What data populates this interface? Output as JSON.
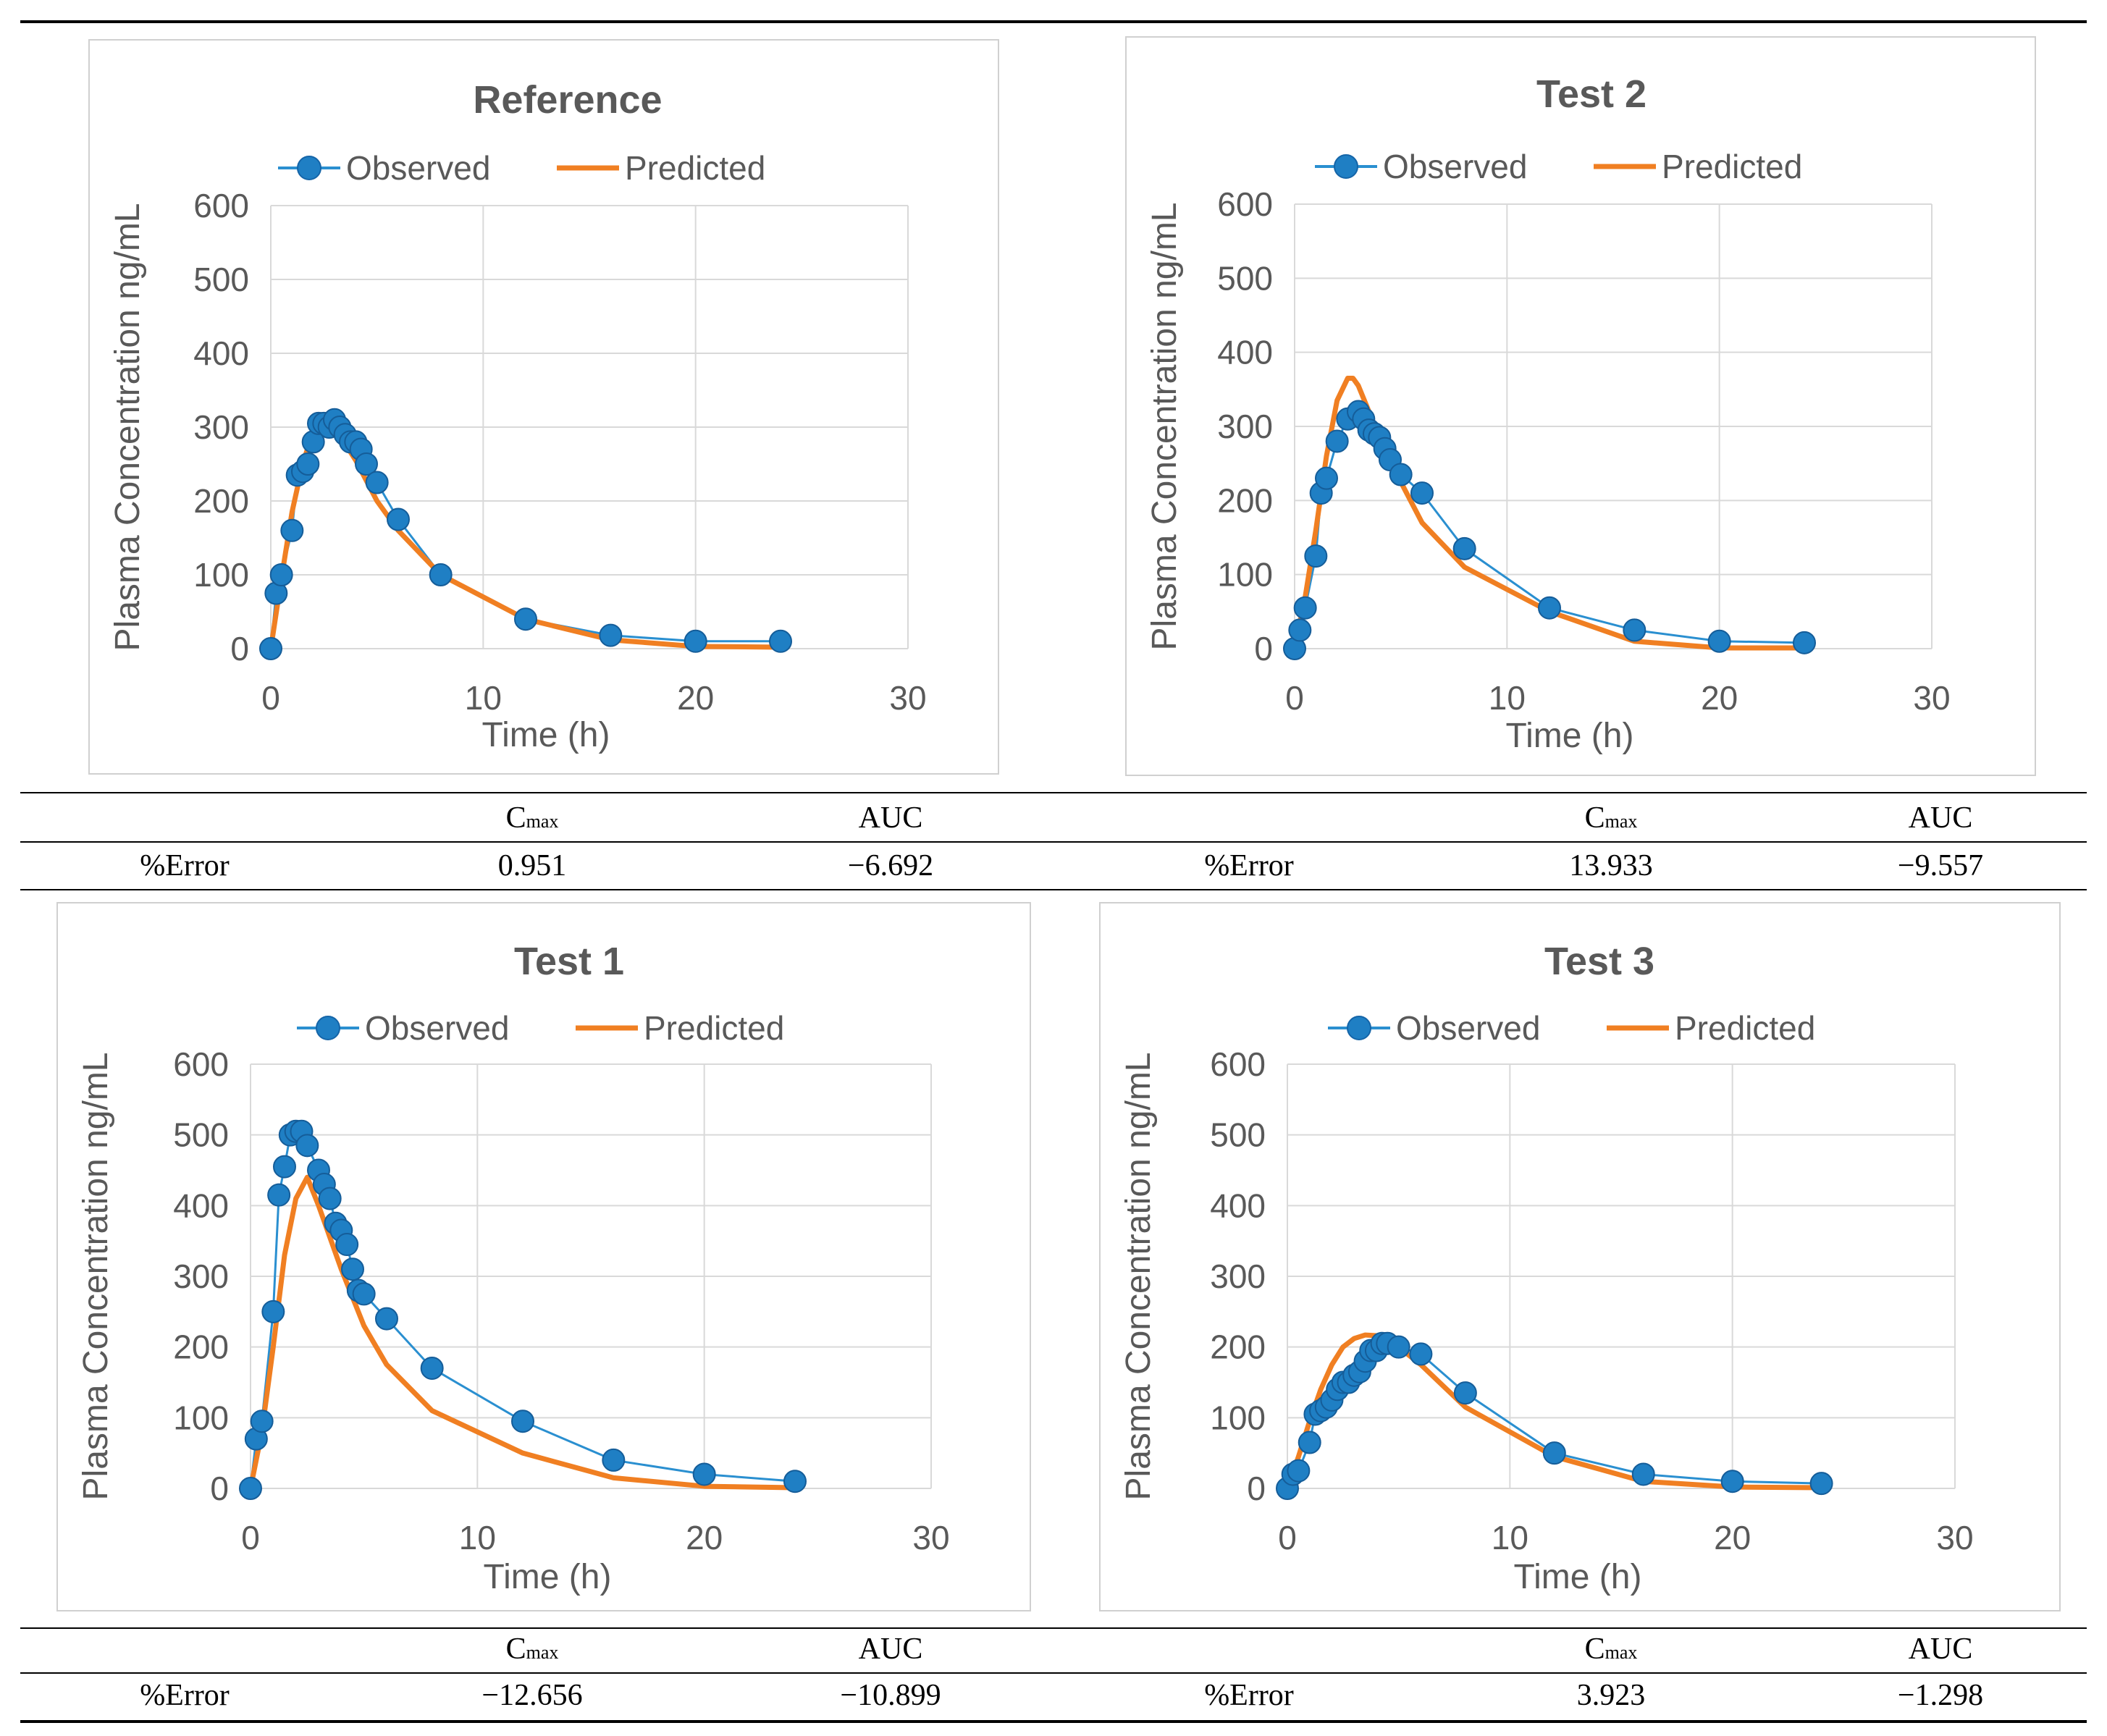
{
  "charts": [
    {
      "title": "Reference",
      "legend": {
        "observed": "Observed",
        "predicted": "Predicted"
      },
      "xlabel": "Time (h)",
      "ylabel": "Plasma Concentration ng/mL",
      "x_ticks": [
        "0",
        "10",
        "20",
        "30"
      ],
      "y_ticks": [
        "0",
        "100",
        "200",
        "300",
        "400",
        "500",
        "600"
      ]
    },
    {
      "title": "Test 2",
      "legend": {
        "observed": "Observed",
        "predicted": "Predicted"
      },
      "xlabel": "Time (h)",
      "ylabel": "Plasma Concentration ng/mL",
      "x_ticks": [
        "0",
        "10",
        "20",
        "30"
      ],
      "y_ticks": [
        "0",
        "100",
        "200",
        "300",
        "400",
        "500",
        "600"
      ]
    },
    {
      "title": "Test 1",
      "legend": {
        "observed": "Observed",
        "predicted": "Predicted"
      },
      "xlabel": "Time (h)",
      "ylabel": "Plasma Concentration ng/mL",
      "x_ticks": [
        "0",
        "10",
        "20",
        "30"
      ],
      "y_ticks": [
        "0",
        "100",
        "200",
        "300",
        "400",
        "500",
        "600"
      ]
    },
    {
      "title": "Test 3",
      "legend": {
        "observed": "Observed",
        "predicted": "Predicted"
      },
      "xlabel": "Time (h)",
      "ylabel": "Plasma Concentration ng/mL",
      "x_ticks": [
        "0",
        "10",
        "20",
        "30"
      ],
      "y_ticks": [
        "0",
        "100",
        "200",
        "300",
        "400",
        "500",
        "600"
      ]
    }
  ],
  "colors": {
    "observed": "#2a8fd0",
    "observed_marker": "#1f7fc4",
    "predicted": "#f07f22",
    "grid": "#d9d9d9",
    "axis_text": "#595959"
  },
  "tables": [
    {
      "row_label": "%Error",
      "col1": "C",
      "col1_sub": "max",
      "col2": "AUC",
      "cmax": "0.951",
      "auc": "−6.692"
    },
    {
      "row_label": "%Error",
      "col1": "C",
      "col1_sub": "max",
      "col2": "AUC",
      "cmax": "13.933",
      "auc": "−9.557"
    },
    {
      "row_label": "%Error",
      "col1": "C",
      "col1_sub": "max",
      "col2": "AUC",
      "cmax": "−12.656",
      "auc": "−10.899"
    },
    {
      "row_label": "%Error",
      "col1": "C",
      "col1_sub": "max",
      "col2": "AUC",
      "cmax": "3.923",
      "auc": "−1.298"
    }
  ],
  "chart_data": [
    {
      "type": "line",
      "title": "Reference",
      "xlabel": "Time (h)",
      "ylabel": "Plasma Concentration ng/mL",
      "xlim": [
        0,
        30
      ],
      "ylim": [
        0,
        600
      ],
      "grid": true,
      "legend": "top",
      "series": [
        {
          "name": "Observed",
          "x": [
            0,
            0.25,
            0.5,
            1,
            1.25,
            1.5,
            1.75,
            2,
            2.25,
            2.5,
            2.75,
            3,
            3.25,
            3.5,
            3.75,
            4,
            4.25,
            4.5,
            5,
            6,
            8,
            12,
            16,
            20,
            24
          ],
          "y": [
            0,
            75,
            100,
            160,
            235,
            240,
            250,
            280,
            305,
            305,
            300,
            310,
            300,
            290,
            280,
            280,
            270,
            250,
            225,
            175,
            100,
            40,
            18,
            10,
            10
          ]
        },
        {
          "name": "Predicted",
          "x": [
            0,
            0.5,
            1,
            1.5,
            2,
            2.5,
            3,
            4,
            5,
            6,
            8,
            12,
            16,
            20,
            24
          ],
          "y": [
            0,
            95,
            185,
            250,
            295,
            310,
            300,
            255,
            200,
            160,
            100,
            40,
            12,
            3,
            2
          ]
        }
      ]
    },
    {
      "type": "line",
      "title": "Test 2",
      "xlabel": "Time (h)",
      "ylabel": "Plasma Concentration ng/mL",
      "xlim": [
        0,
        30
      ],
      "ylim": [
        0,
        600
      ],
      "grid": true,
      "legend": "top",
      "series": [
        {
          "name": "Observed",
          "x": [
            0,
            0.25,
            0.5,
            1,
            1.25,
            1.5,
            2,
            2.5,
            3,
            3.25,
            3.5,
            3.75,
            4,
            4.25,
            4.5,
            5,
            6,
            8,
            12,
            16,
            20,
            24
          ],
          "y": [
            0,
            25,
            55,
            125,
            210,
            230,
            280,
            310,
            320,
            310,
            295,
            290,
            285,
            270,
            255,
            235,
            210,
            135,
            55,
            25,
            10,
            8
          ]
        },
        {
          "name": "Predicted",
          "x": [
            0,
            0.5,
            1,
            1.5,
            2,
            2.5,
            2.75,
            3,
            4,
            5,
            6,
            8,
            12,
            16,
            20,
            24
          ],
          "y": [
            0,
            70,
            160,
            260,
            335,
            365,
            365,
            355,
            285,
            225,
            170,
            110,
            50,
            10,
            1,
            1
          ]
        }
      ]
    },
    {
      "type": "line",
      "title": "Test 1",
      "xlabel": "Time (h)",
      "ylabel": "Plasma Concentration ng/mL",
      "xlim": [
        0,
        30
      ],
      "ylim": [
        0,
        600
      ],
      "grid": true,
      "legend": "top",
      "series": [
        {
          "name": "Observed",
          "x": [
            0,
            0.25,
            0.5,
            1,
            1.25,
            1.5,
            1.75,
            2,
            2.25,
            2.5,
            3,
            3.25,
            3.5,
            3.75,
            4,
            4.25,
            4.5,
            4.75,
            5,
            6,
            8,
            12,
            16,
            20,
            24
          ],
          "y": [
            0,
            70,
            95,
            250,
            415,
            455,
            500,
            505,
            505,
            485,
            450,
            430,
            410,
            375,
            365,
            345,
            310,
            280,
            275,
            240,
            170,
            95,
            40,
            20,
            10
          ]
        },
        {
          "name": "Predicted",
          "x": [
            0,
            0.5,
            1,
            1.5,
            2,
            2.5,
            3,
            4,
            5,
            6,
            8,
            12,
            16,
            20,
            24
          ],
          "y": [
            0,
            80,
            200,
            330,
            410,
            440,
            400,
            310,
            230,
            175,
            110,
            50,
            15,
            3,
            1
          ]
        }
      ]
    },
    {
      "type": "line",
      "title": "Test 3",
      "xlabel": "Time (h)",
      "ylabel": "Plasma Concentration ng/mL",
      "xlim": [
        0,
        30
      ],
      "ylim": [
        0,
        600
      ],
      "grid": true,
      "legend": "top",
      "series": [
        {
          "name": "Observed",
          "x": [
            0,
            0.25,
            0.5,
            1,
            1.25,
            1.5,
            1.75,
            2,
            2.25,
            2.5,
            2.75,
            3,
            3.25,
            3.5,
            3.75,
            4,
            4.25,
            4.5,
            5,
            6,
            8,
            12,
            16,
            20,
            24
          ],
          "y": [
            0,
            20,
            25,
            65,
            105,
            110,
            115,
            125,
            140,
            150,
            150,
            160,
            165,
            180,
            195,
            195,
            205,
            205,
            200,
            190,
            135,
            50,
            20,
            10,
            7
          ]
        },
        {
          "name": "Predicted",
          "x": [
            0,
            0.5,
            1,
            1.5,
            2,
            2.5,
            3,
            3.5,
            4,
            4.5,
            5,
            6,
            8,
            12,
            16,
            20,
            24
          ],
          "y": [
            0,
            45,
            95,
            140,
            175,
            200,
            212,
            217,
            216,
            212,
            200,
            175,
            115,
            45,
            10,
            2,
            1
          ]
        }
      ]
    }
  ]
}
